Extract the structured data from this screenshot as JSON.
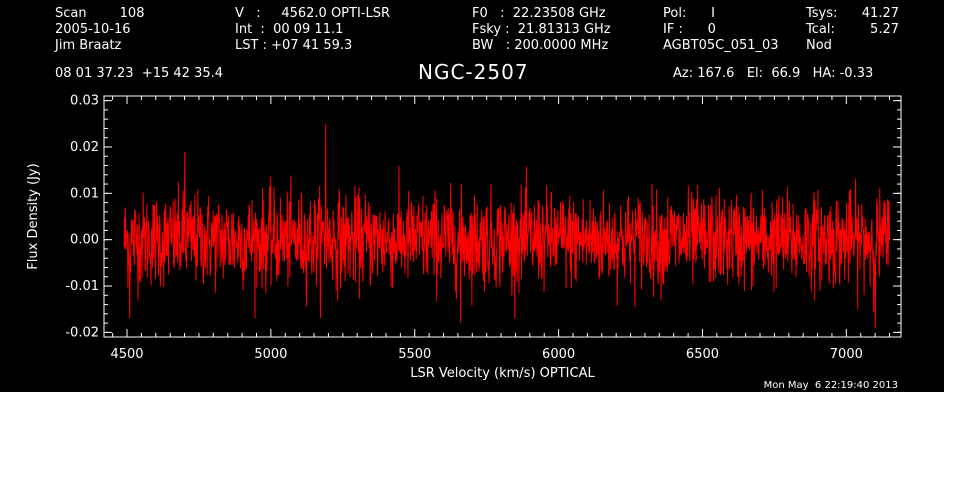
{
  "header": {
    "col1": [
      "Scan        108",
      "2005-10-16",
      "Jim Braatz"
    ],
    "col2": [
      "V   :     4562.0 OPTI-LSR",
      "Int  :  00 09 11.1",
      "LST : +07 41 59.3"
    ],
    "col3": [
      "F0   :  22.23508 GHz",
      "Fsky :  21.81313 GHz",
      "BW   : 200.0000 MHz"
    ],
    "col4": [
      "Pol:      I",
      "IF :      0",
      "AGBT05C_051_03"
    ],
    "col5": [
      "Tsys:",
      "Tcal:",
      "Nod"
    ],
    "col6": [
      "41.27",
      "5.27",
      ""
    ],
    "coords": "08 01 37.23  +15 42 35.4",
    "source": "NGC-2507",
    "azelha": "Az: 167.6   El:  66.9   HA: -0.33"
  },
  "timestamp": "Mon May  6 22:19:40 2013",
  "chart_data": {
    "type": "line",
    "title": "NGC-2507",
    "xlabel": "LSR Velocity (km/s) OPTICAL",
    "ylabel": "Flux Density (Jy)",
    "xlim": [
      4420,
      7190
    ],
    "ylim": [
      -0.021,
      0.031
    ],
    "xticks": [
      4500,
      5000,
      5500,
      6000,
      6500,
      7000
    ],
    "yticks": [
      -0.02,
      -0.01,
      0.0,
      0.01,
      0.02,
      0.03
    ],
    "ytick_labels": [
      "-0.02",
      "-0.01",
      "0.00",
      "0.01",
      "0.02",
      "0.03"
    ],
    "series": [
      {
        "color": "#ff0000",
        "x_start": 4490,
        "x_end": 7150,
        "num_points": 2048,
        "noise_sigma": 0.005,
        "mean": 0.0,
        "notable_peaks": [
          {
            "x": 5190,
            "y": 0.025
          },
          {
            "x": 4700,
            "y": 0.019
          },
          {
            "x": 4510,
            "y": -0.017
          },
          {
            "x": 5660,
            "y": -0.018
          },
          {
            "x": 7100,
            "y": -0.019
          }
        ]
      }
    ]
  }
}
